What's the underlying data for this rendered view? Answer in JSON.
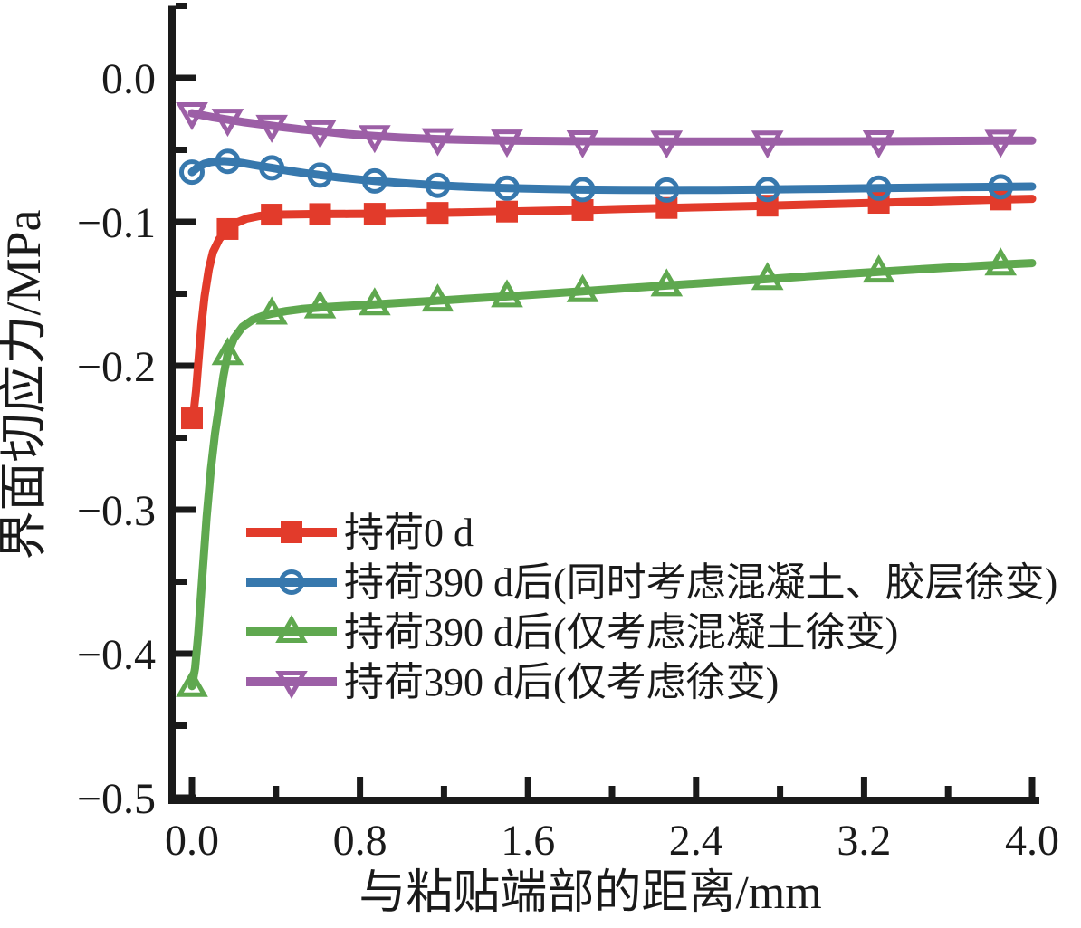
{
  "chart_data": {
    "type": "line",
    "title": "",
    "xlabel": "与粘贴端部的距离/mm",
    "ylabel": "界面切应力/MPa",
    "xlim": [
      0,
      4.0
    ],
    "ylim": [
      -0.5,
      0.05
    ],
    "grid": false,
    "legend_position": "inside-left-middle",
    "axis_color": "#1a1a1a",
    "x_major_ticks": [
      0.0,
      0.8,
      1.6,
      2.4,
      3.2,
      4.0
    ],
    "x_major_tick_labels": [
      "0.0",
      "0.8",
      "1.6",
      "2.4",
      "3.2",
      "4.0"
    ],
    "x_minor_ticks": [
      0.4,
      1.2,
      2.0,
      2.8,
      3.6
    ],
    "y_major_ticks": [
      0,
      -0.1,
      -0.2,
      -0.3,
      -0.4,
      -0.5
    ],
    "y_major_tick_labels": [
      "0.0",
      "−0.1",
      "−0.2",
      "−0.3",
      "−0.4",
      "−0.5"
    ],
    "y_minor_ticks": [
      0.05,
      -0.05,
      -0.15,
      -0.25,
      -0.35,
      -0.45
    ],
    "marker_x": [
      0,
      0.17,
      0.38,
      0.61,
      0.87,
      1.17,
      1.5,
      1.86,
      2.26,
      2.74,
      3.27,
      3.85
    ],
    "series": [
      {
        "name": "持荷0 d",
        "color": "#e23b2b",
        "marker": "square-filled",
        "points": [
          [
            0,
            -0.2365
          ],
          [
            0.01,
            -0.23
          ],
          [
            0.02,
            -0.217
          ],
          [
            0.03,
            -0.198
          ],
          [
            0.045,
            -0.172
          ],
          [
            0.06,
            -0.152
          ],
          [
            0.08,
            -0.133
          ],
          [
            0.1,
            -0.121
          ],
          [
            0.13,
            -0.112
          ],
          [
            0.17,
            -0.105
          ],
          [
            0.21,
            -0.1008
          ],
          [
            0.26,
            -0.0978
          ],
          [
            0.32,
            -0.096
          ],
          [
            0.38,
            -0.095
          ],
          [
            0.5,
            -0.0948
          ],
          [
            0.61,
            -0.0946
          ],
          [
            0.75,
            -0.0945
          ],
          [
            0.87,
            -0.0944
          ],
          [
            1.0,
            -0.0941
          ],
          [
            1.17,
            -0.0938
          ],
          [
            1.33,
            -0.0934
          ],
          [
            1.5,
            -0.0929
          ],
          [
            1.7,
            -0.0923
          ],
          [
            1.86,
            -0.0918
          ],
          [
            2.05,
            -0.0911
          ],
          [
            2.26,
            -0.0904
          ],
          [
            2.5,
            -0.0896
          ],
          [
            2.74,
            -0.0888
          ],
          [
            3.0,
            -0.0878
          ],
          [
            3.27,
            -0.0868
          ],
          [
            3.55,
            -0.0857
          ],
          [
            3.85,
            -0.0845
          ],
          [
            4.0,
            -0.084
          ]
        ]
      },
      {
        "name": "持荷390 d后(同时考虑混凝土、胶层徐变)",
        "color": "#3778ad",
        "marker": "circle-open",
        "points": [
          [
            0,
            -0.0655
          ],
          [
            0.03,
            -0.0618
          ],
          [
            0.06,
            -0.0596
          ],
          [
            0.09,
            -0.0585
          ],
          [
            0.12,
            -0.058
          ],
          [
            0.15,
            -0.0578
          ],
          [
            0.19,
            -0.0582
          ],
          [
            0.24,
            -0.0592
          ],
          [
            0.3,
            -0.0607
          ],
          [
            0.38,
            -0.0625
          ],
          [
            0.46,
            -0.0645
          ],
          [
            0.54,
            -0.0662
          ],
          [
            0.61,
            -0.0675
          ],
          [
            0.7,
            -0.0692
          ],
          [
            0.8,
            -0.0706
          ],
          [
            0.87,
            -0.0716
          ],
          [
            1.0,
            -0.0731
          ],
          [
            1.17,
            -0.0747
          ],
          [
            1.33,
            -0.0758
          ],
          [
            1.5,
            -0.0766
          ],
          [
            1.7,
            -0.0772
          ],
          [
            1.86,
            -0.0776
          ],
          [
            2.05,
            -0.0778
          ],
          [
            2.26,
            -0.0779
          ],
          [
            2.5,
            -0.0778
          ],
          [
            2.74,
            -0.0775
          ],
          [
            3.0,
            -0.0771
          ],
          [
            3.27,
            -0.0766
          ],
          [
            3.55,
            -0.0761
          ],
          [
            3.85,
            -0.0757
          ],
          [
            4.0,
            -0.0755
          ]
        ]
      },
      {
        "name": "持荷390 d后(仅考虑混凝土徐变)",
        "color": "#5fa84f",
        "marker": "triangle-up-open",
        "points": [
          [
            0,
            -0.4225
          ],
          [
            0.015,
            -0.41
          ],
          [
            0.03,
            -0.386
          ],
          [
            0.05,
            -0.345
          ],
          [
            0.07,
            -0.305
          ],
          [
            0.09,
            -0.272
          ],
          [
            0.11,
            -0.247
          ],
          [
            0.13,
            -0.227
          ],
          [
            0.15,
            -0.207
          ],
          [
            0.17,
            -0.192
          ],
          [
            0.2,
            -0.181
          ],
          [
            0.24,
            -0.173
          ],
          [
            0.29,
            -0.168
          ],
          [
            0.34,
            -0.1652
          ],
          [
            0.38,
            -0.1638
          ],
          [
            0.45,
            -0.162
          ],
          [
            0.52,
            -0.1606
          ],
          [
            0.61,
            -0.1595
          ],
          [
            0.75,
            -0.1583
          ],
          [
            0.87,
            -0.1574
          ],
          [
            1.0,
            -0.1562
          ],
          [
            1.17,
            -0.1548
          ],
          [
            1.33,
            -0.1533
          ],
          [
            1.5,
            -0.1518
          ],
          [
            1.7,
            -0.1498
          ],
          [
            1.86,
            -0.1483
          ],
          [
            2.05,
            -0.1463
          ],
          [
            2.26,
            -0.1443
          ],
          [
            2.5,
            -0.142
          ],
          [
            2.74,
            -0.1398
          ],
          [
            3.0,
            -0.1372
          ],
          [
            3.27,
            -0.1347
          ],
          [
            3.55,
            -0.1322
          ],
          [
            3.85,
            -0.1297
          ],
          [
            4.0,
            -0.1287
          ]
        ]
      },
      {
        "name": "持荷390 d后(仅考虑徐变)",
        "color": "#9c5fa6",
        "marker": "triangle-down-open",
        "points": [
          [
            0,
            -0.0245
          ],
          [
            0.05,
            -0.026
          ],
          [
            0.1,
            -0.0274
          ],
          [
            0.17,
            -0.029
          ],
          [
            0.25,
            -0.0308
          ],
          [
            0.33,
            -0.0323
          ],
          [
            0.42,
            -0.034
          ],
          [
            0.52,
            -0.0357
          ],
          [
            0.61,
            -0.037
          ],
          [
            0.74,
            -0.039
          ],
          [
            0.87,
            -0.0404
          ],
          [
            1.0,
            -0.0415
          ],
          [
            1.17,
            -0.0425
          ],
          [
            1.33,
            -0.0431
          ],
          [
            1.5,
            -0.0435
          ],
          [
            1.7,
            -0.0438
          ],
          [
            1.86,
            -0.044
          ],
          [
            2.05,
            -0.0441
          ],
          [
            2.26,
            -0.0442
          ],
          [
            2.5,
            -0.0442
          ],
          [
            2.74,
            -0.0442
          ],
          [
            3.0,
            -0.0441
          ],
          [
            3.27,
            -0.044
          ],
          [
            3.55,
            -0.0438
          ],
          [
            3.85,
            -0.0436
          ],
          [
            4.0,
            -0.0435
          ]
        ]
      }
    ]
  }
}
